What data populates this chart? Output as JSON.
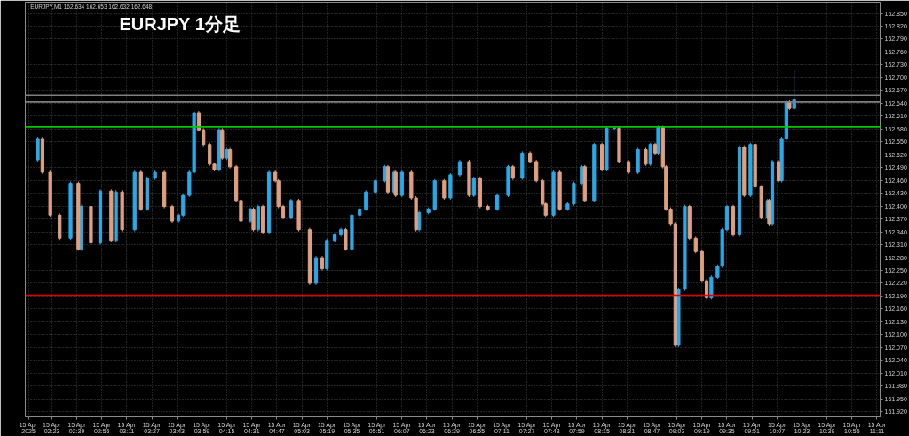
{
  "chart_data": {
    "type": "candlestick",
    "title": "EURJPY  1分足",
    "annotations": [
      "EURJPY,M1  162.634 162.653 162.632 162.648"
    ],
    "xlim": [
      "2025-04-15T02:06",
      "2025-04-15T11:13"
    ],
    "ylim": [
      161.908,
      162.876
    ],
    "grid": true,
    "xticks": [
      {
        "value": "2025-04-15T02:08",
        "label": "15 Apr 2025"
      },
      {
        "value": "2025-04-15T02:23",
        "label": "15 Apr 02:23"
      },
      {
        "value": "2025-04-15T02:39",
        "label": "15 Apr 02:39"
      },
      {
        "value": "2025-04-15T02:55",
        "label": "15 Apr 02:55"
      },
      {
        "value": "2025-04-15T03:11",
        "label": "15 Apr 03:11"
      },
      {
        "value": "2025-04-15T03:27",
        "label": "15 Apr 03:27"
      },
      {
        "value": "2025-04-15T03:43",
        "label": "15 Apr 03:43"
      },
      {
        "value": "2025-04-15T03:59",
        "label": "15 Apr 03:59"
      },
      {
        "value": "2025-04-15T04:15",
        "label": "15 Apr 04:15"
      },
      {
        "value": "2025-04-15T04:31",
        "label": "15 Apr 04:31"
      },
      {
        "value": "2025-04-15T04:47",
        "label": "15 Apr 04:47"
      },
      {
        "value": "2025-04-15T05:03",
        "label": "15 Apr 05:03"
      },
      {
        "value": "2025-04-15T05:19",
        "label": "15 Apr 05:19"
      },
      {
        "value": "2025-04-15T05:35",
        "label": "15 Apr 05:35"
      },
      {
        "value": "2025-04-15T05:51",
        "label": "15 Apr 05:51"
      },
      {
        "value": "2025-04-15T06:07",
        "label": "15 Apr 06:07"
      },
      {
        "value": "2025-04-15T06:23",
        "label": "15 Apr 06:23"
      },
      {
        "value": "2025-04-15T06:39",
        "label": "15 Apr 06:39"
      },
      {
        "value": "2025-04-15T06:55",
        "label": "15 Apr 06:55"
      },
      {
        "value": "2025-04-15T07:11",
        "label": "15 Apr 07:11"
      },
      {
        "value": "2025-04-15T07:27",
        "label": "15 Apr 07:27"
      },
      {
        "value": "2025-04-15T07:43",
        "label": "15 Apr 07:43"
      },
      {
        "value": "2025-04-15T07:59",
        "label": "15 Apr 07:59"
      },
      {
        "value": "2025-04-15T08:15",
        "label": "15 Apr 08:15"
      },
      {
        "value": "2025-04-15T08:31",
        "label": "15 Apr 08:31"
      },
      {
        "value": "2025-04-15T08:47",
        "label": "15 Apr 08:47"
      },
      {
        "value": "2025-04-15T09:03",
        "label": "15 Apr 09:03"
      },
      {
        "value": "2025-04-15T09:19",
        "label": "15 Apr 09:19"
      },
      {
        "value": "2025-04-15T09:35",
        "label": "15 Apr 09:35"
      },
      {
        "value": "2025-04-15T09:51",
        "label": "15 Apr 09:51"
      },
      {
        "value": "2025-04-15T10:07",
        "label": "15 Apr 10:07"
      },
      {
        "value": "2025-04-15T10:23",
        "label": "15 Apr 10:23"
      },
      {
        "value": "2025-04-15T10:39",
        "label": "15 Apr 10:39"
      },
      {
        "value": "2025-04-15T10:55",
        "label": "15 Apr 10:55"
      },
      {
        "value": "2025-04-15T11:11",
        "label": "15 Apr 11:11"
      }
    ],
    "yticks": [
      {
        "value": 161.92,
        "label": "161.920"
      },
      {
        "value": 161.95,
        "label": "161.950"
      },
      {
        "value": 161.98,
        "label": "161.980"
      },
      {
        "value": 162.01,
        "label": "162.010"
      },
      {
        "value": 162.04,
        "label": "162.040"
      },
      {
        "value": 162.07,
        "label": "162.070"
      },
      {
        "value": 162.1,
        "label": "162.100"
      },
      {
        "value": 162.13,
        "label": "162.130"
      },
      {
        "value": 162.16,
        "label": "162.160"
      },
      {
        "value": 162.19,
        "label": "162.190"
      },
      {
        "value": 162.22,
        "label": "162.220"
      },
      {
        "value": 162.25,
        "label": "162.250"
      },
      {
        "value": 162.28,
        "label": "162.280"
      },
      {
        "value": 162.31,
        "label": "162.310"
      },
      {
        "value": 162.34,
        "label": "162.340"
      },
      {
        "value": 162.37,
        "label": "162.370"
      },
      {
        "value": 162.4,
        "label": "162.400"
      },
      {
        "value": 162.43,
        "label": "162.430"
      },
      {
        "value": 162.46,
        "label": "162.460"
      },
      {
        "value": 162.49,
        "label": "162.490"
      },
      {
        "value": 162.52,
        "label": "162.520"
      },
      {
        "value": 162.55,
        "label": "162.550"
      },
      {
        "value": 162.58,
        "label": "162.580"
      },
      {
        "value": 162.61,
        "label": "162.610"
      },
      {
        "value": 162.64,
        "label": "162.640"
      },
      {
        "value": 162.67,
        "label": "162.670"
      },
      {
        "value": 162.7,
        "label": "162.700"
      },
      {
        "value": 162.73,
        "label": "162.730"
      },
      {
        "value": 162.76,
        "label": "162.760"
      },
      {
        "value": 162.79,
        "label": "162.790"
      },
      {
        "value": 162.82,
        "label": "162.820"
      },
      {
        "value": 162.85,
        "label": "162.850"
      }
    ],
    "ref_lines": [
      {
        "axis": "y",
        "value": 162.585,
        "color": "#00c800"
      },
      {
        "axis": "y",
        "value": 162.192,
        "color": "#e00000"
      },
      {
        "axis": "y",
        "value": 162.659,
        "color": "#7f7f7f"
      },
      {
        "axis": "y",
        "value": 162.643,
        "color": "#7f7f7f"
      }
    ],
    "series": [
      {
        "color": "#29a9e8",
        "x": [
          "2025-04-15T02:14",
          "2025-04-15T02:35",
          "2025-04-15T02:42",
          "2025-04-15T02:54",
          "2025-04-15T03:04",
          "2025-04-15T03:16",
          "2025-04-15T03:24",
          "2025-04-15T03:29",
          "2025-04-15T03:44",
          "2025-04-15T03:47",
          "2025-04-15T03:51",
          "2025-04-15T03:54",
          "2025-04-15T04:10",
          "2025-04-15T04:15",
          "2025-04-15T04:30",
          "2025-04-15T04:35",
          "2025-04-15T04:42",
          "2025-04-15T04:56",
          "2025-04-15T05:12",
          "2025-04-15T05:19",
          "2025-04-15T05:24",
          "2025-04-15T05:28",
          "2025-04-15T05:35",
          "2025-04-15T05:40",
          "2025-04-15T05:44",
          "2025-04-15T05:50",
          "2025-04-15T05:56",
          "2025-04-15T06:02",
          "2025-04-15T06:07",
          "2025-04-15T06:18",
          "2025-04-15T06:24",
          "2025-04-15T06:28",
          "2025-04-15T06:38",
          "2025-04-15T06:44",
          "2025-04-15T06:53",
          "2025-04-15T07:08",
          "2025-04-15T07:15",
          "2025-04-15T07:24",
          "2025-04-15T07:44",
          "2025-04-15T07:53",
          "2025-04-15T07:57",
          "2025-04-15T08:02",
          "2025-04-15T08:10",
          "2025-04-15T08:18",
          "2025-04-15T08:23",
          "2025-04-15T08:38",
          "2025-04-15T08:46",
          "2025-04-15T08:51",
          "2025-04-15T09:04",
          "2025-04-15T09:08",
          "2025-04-15T09:25",
          "2025-04-15T09:29",
          "2025-04-15T09:32",
          "2025-04-15T09:35",
          "2025-04-15T09:43",
          "2025-04-15T09:50",
          "2025-04-15T10:01",
          "2025-04-15T10:04",
          "2025-04-15T10:10",
          "2025-04-15T10:13",
          "2025-04-15T10:18"
        ],
        "ohlc": [
          [
            162.508,
            162.562,
            162.504,
            162.558
          ],
          [
            162.325,
            162.457,
            162.321,
            162.453
          ],
          [
            162.3,
            162.403,
            162.296,
            162.399
          ],
          [
            162.314,
            162.439,
            162.31,
            162.435
          ],
          [
            162.32,
            162.437,
            162.316,
            162.433
          ],
          [
            162.345,
            162.483,
            162.341,
            162.479
          ],
          [
            162.393,
            162.469,
            162.389,
            162.465
          ],
          [
            162.465,
            162.483,
            162.461,
            162.479
          ],
          [
            162.365,
            162.383,
            162.361,
            162.379
          ],
          [
            162.379,
            162.429,
            162.375,
            162.425
          ],
          [
            162.425,
            162.483,
            162.421,
            162.479
          ],
          [
            162.479,
            162.622,
            162.475,
            162.618
          ],
          [
            162.485,
            162.582,
            162.481,
            162.578
          ],
          [
            162.512,
            162.536,
            162.508,
            162.532
          ],
          [
            162.365,
            162.397,
            162.361,
            162.393
          ],
          [
            162.345,
            162.403,
            162.341,
            162.399
          ],
          [
            162.339,
            162.483,
            162.335,
            162.479
          ],
          [
            162.373,
            162.417,
            162.369,
            162.413
          ],
          [
            162.22,
            162.284,
            162.216,
            162.28
          ],
          [
            162.254,
            162.324,
            162.25,
            162.32
          ],
          [
            162.32,
            162.337,
            162.316,
            162.333
          ],
          [
            162.333,
            162.349,
            162.329,
            162.345
          ],
          [
            162.3,
            162.383,
            162.296,
            162.379
          ],
          [
            162.379,
            162.397,
            162.375,
            162.393
          ],
          [
            162.393,
            162.437,
            162.389,
            162.433
          ],
          [
            162.433,
            162.463,
            162.429,
            162.459
          ],
          [
            162.459,
            162.496,
            162.455,
            162.492
          ],
          [
            162.433,
            162.483,
            162.429,
            162.479
          ],
          [
            162.425,
            162.483,
            162.421,
            162.479
          ],
          [
            162.345,
            162.389,
            162.341,
            162.385
          ],
          [
            162.385,
            162.397,
            162.381,
            162.393
          ],
          [
            162.393,
            162.463,
            162.389,
            162.459
          ],
          [
            162.419,
            162.477,
            162.415,
            162.473
          ],
          [
            162.473,
            162.508,
            162.469,
            162.504
          ],
          [
            162.425,
            162.469,
            162.421,
            162.465
          ],
          [
            162.393,
            162.429,
            162.389,
            162.425
          ],
          [
            162.425,
            162.496,
            162.421,
            162.492
          ],
          [
            162.465,
            162.528,
            162.461,
            162.524
          ],
          [
            162.379,
            162.483,
            162.375,
            162.479
          ],
          [
            162.393,
            162.409,
            162.389,
            162.405
          ],
          [
            162.405,
            162.457,
            162.401,
            162.453
          ],
          [
            162.453,
            162.496,
            162.449,
            162.492
          ],
          [
            162.413,
            162.548,
            162.409,
            162.544
          ],
          [
            162.485,
            162.586,
            162.481,
            162.582
          ],
          [
            162.582,
            162.586,
            162.578,
            162.582
          ],
          [
            162.479,
            162.536,
            162.475,
            162.532
          ],
          [
            162.498,
            162.548,
            162.494,
            162.544
          ],
          [
            162.524,
            162.588,
            162.52,
            162.584
          ],
          [
            162.075,
            162.21,
            162.071,
            162.206
          ],
          [
            162.206,
            162.403,
            162.202,
            162.399
          ],
          [
            162.186,
            162.238,
            162.182,
            162.234
          ],
          [
            162.234,
            162.264,
            162.23,
            162.26
          ],
          [
            162.26,
            162.349,
            162.256,
            162.345
          ],
          [
            162.345,
            162.403,
            162.341,
            162.399
          ],
          [
            162.333,
            162.542,
            162.329,
            162.538
          ],
          [
            162.425,
            162.548,
            162.421,
            162.544
          ],
          [
            162.373,
            162.417,
            162.369,
            162.413
          ],
          [
            162.359,
            162.508,
            162.355,
            162.504
          ],
          [
            162.459,
            162.562,
            162.455,
            162.558
          ],
          [
            162.558,
            162.647,
            162.554,
            162.643
          ],
          [
            162.628,
            162.717,
            162.624,
            162.648
          ]
        ]
      },
      {
        "color": "#e0a080",
        "x": [
          "2025-04-15T02:17",
          "2025-04-15T02:22",
          "2025-04-15T02:28",
          "2025-04-15T02:40",
          "2025-04-15T02:48",
          "2025-04-15T03:01",
          "2025-04-15T03:08",
          "2025-04-15T03:20",
          "2025-04-15T03:35",
          "2025-04-15T03:40",
          "2025-04-15T03:57",
          "2025-04-15T04:00",
          "2025-04-15T04:04",
          "2025-04-15T04:07",
          "2025-04-15T04:12",
          "2025-04-15T04:17",
          "2025-04-15T04:21",
          "2025-04-15T04:24",
          "2025-04-15T04:32",
          "2025-04-15T04:38",
          "2025-04-15T04:46",
          "2025-04-15T04:48",
          "2025-04-15T04:51",
          "2025-04-15T05:01",
          "2025-04-15T05:08",
          "2025-04-15T05:16",
          "2025-04-15T05:31",
          "2025-04-15T05:58",
          "2025-04-15T06:03",
          "2025-04-15T06:13",
          "2025-04-15T06:16",
          "2025-04-15T06:34",
          "2025-04-15T06:50",
          "2025-04-15T06:57",
          "2025-04-15T07:02",
          "2025-04-15T07:18",
          "2025-04-15T07:29",
          "2025-04-15T07:33",
          "2025-04-15T07:37",
          "2025-04-15T07:39",
          "2025-04-15T07:48",
          "2025-04-15T08:04",
          "2025-04-15T08:15",
          "2025-04-15T08:26",
          "2025-04-15T08:32",
          "2025-04-15T08:43",
          "2025-04-15T08:49",
          "2025-04-15T08:54",
          "2025-04-15T08:56",
          "2025-04-15T08:59",
          "2025-04-15T09:02",
          "2025-04-15T09:11",
          "2025-04-15T09:15",
          "2025-04-15T09:19",
          "2025-04-15T09:22",
          "2025-04-15T09:39",
          "2025-04-15T09:46",
          "2025-04-15T09:53",
          "2025-04-15T09:57",
          "2025-04-15T10:02",
          "2025-04-15T10:08",
          "2025-04-15T10:15"
        ],
        "ohlc": [
          [
            162.558,
            162.562,
            162.475,
            162.479
          ],
          [
            162.479,
            162.483,
            162.375,
            162.379
          ],
          [
            162.379,
            162.383,
            162.321,
            162.325
          ],
          [
            162.453,
            162.457,
            162.296,
            162.3
          ],
          [
            162.399,
            162.403,
            162.31,
            162.314
          ],
          [
            162.435,
            162.439,
            162.316,
            162.32
          ],
          [
            162.433,
            162.437,
            162.341,
            162.345
          ],
          [
            162.479,
            162.483,
            162.389,
            162.393
          ],
          [
            162.479,
            162.483,
            162.395,
            162.399
          ],
          [
            162.399,
            162.403,
            162.361,
            162.365
          ],
          [
            162.618,
            162.622,
            162.574,
            162.578
          ],
          [
            162.578,
            162.582,
            162.54,
            162.544
          ],
          [
            162.544,
            162.548,
            162.494,
            162.498
          ],
          [
            162.498,
            162.502,
            162.481,
            162.485
          ],
          [
            162.578,
            162.582,
            162.508,
            162.512
          ],
          [
            162.532,
            162.536,
            162.488,
            162.492
          ],
          [
            162.492,
            162.496,
            162.409,
            162.413
          ],
          [
            162.413,
            162.417,
            162.361,
            162.365
          ],
          [
            162.393,
            162.397,
            162.341,
            162.345
          ],
          [
            162.399,
            162.403,
            162.335,
            162.339
          ],
          [
            162.479,
            162.483,
            162.455,
            162.459
          ],
          [
            162.459,
            162.463,
            162.395,
            162.399
          ],
          [
            162.399,
            162.403,
            162.369,
            162.373
          ],
          [
            162.413,
            162.417,
            162.341,
            162.345
          ],
          [
            162.345,
            162.349,
            162.216,
            162.22
          ],
          [
            162.28,
            162.284,
            162.25,
            162.254
          ],
          [
            162.345,
            162.349,
            162.296,
            162.3
          ],
          [
            162.492,
            162.496,
            162.429,
            162.433
          ],
          [
            162.479,
            162.483,
            162.421,
            162.425
          ],
          [
            162.479,
            162.483,
            162.415,
            162.419
          ],
          [
            162.419,
            162.423,
            162.341,
            162.345
          ],
          [
            162.459,
            162.463,
            162.415,
            162.419
          ],
          [
            162.504,
            162.508,
            162.421,
            162.425
          ],
          [
            162.465,
            162.469,
            162.395,
            162.399
          ],
          [
            162.399,
            162.403,
            162.389,
            162.393
          ],
          [
            162.492,
            162.496,
            162.461,
            162.465
          ],
          [
            162.524,
            162.528,
            162.5,
            162.504
          ],
          [
            162.504,
            162.508,
            162.455,
            162.459
          ],
          [
            162.459,
            162.463,
            162.401,
            162.405
          ],
          [
            162.405,
            162.409,
            162.375,
            162.379
          ],
          [
            162.479,
            162.483,
            162.389,
            162.393
          ],
          [
            162.492,
            162.496,
            162.409,
            162.413
          ],
          [
            162.544,
            162.548,
            162.481,
            162.485
          ],
          [
            162.582,
            162.586,
            162.5,
            162.504
          ],
          [
            162.504,
            162.508,
            162.475,
            162.479
          ],
          [
            162.532,
            162.536,
            162.494,
            162.498
          ],
          [
            162.544,
            162.548,
            162.52,
            162.524
          ],
          [
            162.584,
            162.588,
            162.488,
            162.492
          ],
          [
            162.492,
            162.496,
            162.389,
            162.393
          ],
          [
            162.393,
            162.397,
            162.355,
            162.359
          ],
          [
            162.359,
            162.363,
            162.071,
            162.075
          ],
          [
            162.399,
            162.403,
            162.321,
            162.325
          ],
          [
            162.325,
            162.329,
            162.29,
            162.294
          ],
          [
            162.294,
            162.298,
            162.222,
            162.226
          ],
          [
            162.226,
            162.23,
            162.182,
            162.186
          ],
          [
            162.399,
            162.403,
            162.329,
            162.333
          ],
          [
            162.538,
            162.542,
            162.421,
            162.425
          ],
          [
            162.544,
            162.548,
            162.441,
            162.445
          ],
          [
            162.445,
            162.449,
            162.369,
            162.373
          ],
          [
            162.413,
            162.417,
            162.355,
            162.359
          ],
          [
            162.504,
            162.508,
            162.455,
            162.459
          ],
          [
            162.643,
            162.647,
            162.624,
            162.628
          ]
        ]
      }
    ]
  }
}
